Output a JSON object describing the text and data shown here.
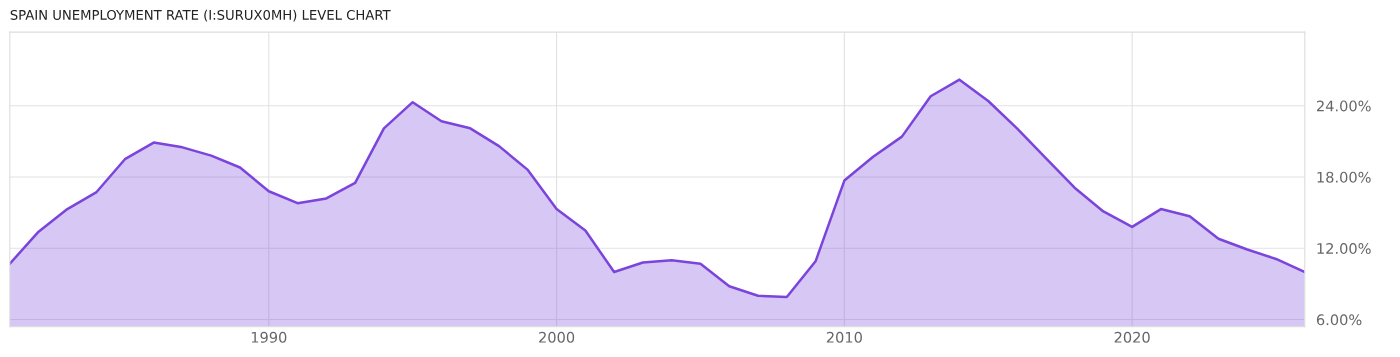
{
  "chart_data": {
    "type": "area",
    "title": "SPAIN UNEMPLOYMENT RATE (I:SURUX0MH) LEVEL CHART",
    "x": [
      1981,
      1982,
      1983,
      1984,
      1985,
      1986,
      1987,
      1988,
      1989,
      1990,
      1991,
      1992,
      1993,
      1994,
      1995,
      1996,
      1997,
      1998,
      1999,
      2000,
      2001,
      2002,
      2003,
      2004,
      2005,
      2006,
      2007,
      2008,
      2009,
      2010,
      2011,
      2012,
      2013,
      2014,
      2015,
      2016,
      2017,
      2018,
      2019,
      2020,
      2021,
      2022,
      2023,
      2024,
      2025,
      2026
    ],
    "series": [
      {
        "color": "#7b45dc",
        "values": [
          10.7,
          13.4,
          15.3,
          16.7,
          19.5,
          20.9,
          20.5,
          19.8,
          18.8,
          16.8,
          15.8,
          16.2,
          17.5,
          22.1,
          24.3,
          22.7,
          22.1,
          20.6,
          18.6,
          15.3,
          13.5,
          10.0,
          10.8,
          11.0,
          10.7,
          8.8,
          8.0,
          7.9,
          10.9,
          17.7,
          19.7,
          21.4,
          24.8,
          26.2,
          24.4,
          22.1,
          19.6,
          17.1,
          15.1,
          13.8,
          15.3,
          14.7,
          12.8,
          11.9,
          11.1,
          10.0
        ]
      }
    ],
    "xlim": [
      1981,
      2026
    ],
    "xticks": [
      1990,
      2000,
      2010,
      2020
    ],
    "ylim": [
      5.4,
      30.2
    ],
    "yticks": [
      {
        "value": 6,
        "label": "6.00%"
      },
      {
        "value": 12,
        "label": "12.00%"
      },
      {
        "value": 18,
        "label": "18.00%"
      },
      {
        "value": 24,
        "label": "24.00%"
      }
    ],
    "grid": true,
    "legend": false
  }
}
